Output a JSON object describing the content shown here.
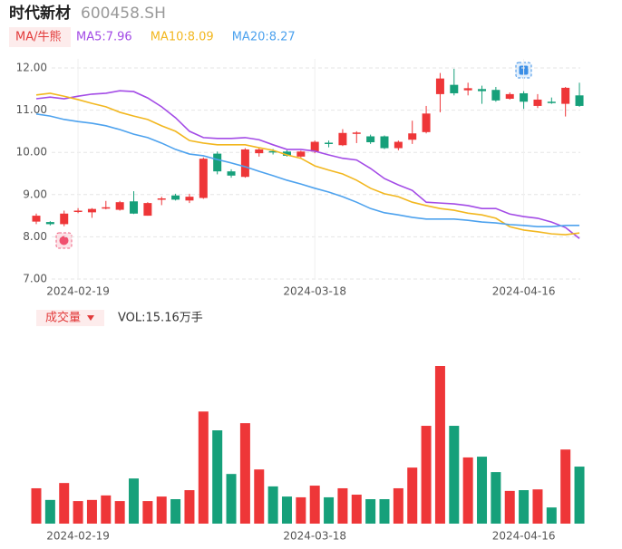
{
  "chart_data": {
    "type": "candlestick",
    "title": "时代新材",
    "subtitle": "600458.SH",
    "indicator": "MA/牛熊",
    "up_color": "#ee3638",
    "down_color": "#16a07a",
    "categories": [
      null,
      null,
      null,
      "2024-02-19",
      null,
      null,
      null,
      null,
      null,
      null,
      null,
      null,
      null,
      null,
      null,
      null,
      null,
      null,
      null,
      null,
      "2024-03-18",
      null,
      null,
      null,
      null,
      null,
      null,
      null,
      null,
      null,
      null,
      null,
      null,
      null,
      null,
      "2024-04-16",
      null,
      null,
      null,
      null
    ],
    "open": [
      8.36,
      8.35,
      8.3,
      8.6,
      8.58,
      8.68,
      8.64,
      8.84,
      8.5,
      8.88,
      8.98,
      8.86,
      8.92,
      9.97,
      9.55,
      9.42,
      9.98,
      10.03,
      10.02,
      9.9,
      10.02,
      10.23,
      10.17,
      10.44,
      10.38,
      10.38,
      10.1,
      10.3,
      10.48,
      11.38,
      11.6,
      11.47,
      11.5,
      11.48,
      11.27,
      11.4,
      11.1,
      11.2,
      11.15,
      11.35
    ],
    "close": [
      8.5,
      8.3,
      8.55,
      8.62,
      8.66,
      8.7,
      8.82,
      8.55,
      8.8,
      8.91,
      8.88,
      8.95,
      9.85,
      9.55,
      9.45,
      10.07,
      10.07,
      10.01,
      9.92,
      10.02,
      10.25,
      10.2,
      10.46,
      10.47,
      10.24,
      10.1,
      10.25,
      10.45,
      10.92,
      11.75,
      11.4,
      11.52,
      11.45,
      11.23,
      11.38,
      11.2,
      11.25,
      11.17,
      11.53,
      11.1
    ],
    "high": [
      8.55,
      8.37,
      8.62,
      8.68,
      8.68,
      8.85,
      8.85,
      9.08,
      8.82,
      8.95,
      9.02,
      9.02,
      9.88,
      10.02,
      9.6,
      10.1,
      10.1,
      10.08,
      10.05,
      10.04,
      10.28,
      10.28,
      10.55,
      10.5,
      10.42,
      10.4,
      10.28,
      10.75,
      11.1,
      11.88,
      11.98,
      11.65,
      11.58,
      11.55,
      11.42,
      11.45,
      11.38,
      11.3,
      11.55,
      11.65
    ],
    "low": [
      8.3,
      8.27,
      8.25,
      8.56,
      8.45,
      8.65,
      8.62,
      8.54,
      8.5,
      8.75,
      8.86,
      8.8,
      8.9,
      9.48,
      9.4,
      9.4,
      9.9,
      9.95,
      9.9,
      9.88,
      9.98,
      10.12,
      10.15,
      10.22,
      10.2,
      10.08,
      10.05,
      10.2,
      10.45,
      10.95,
      11.35,
      11.35,
      11.15,
      11.2,
      11.25,
      11.03,
      11.05,
      11.15,
      10.85,
      11.08
    ],
    "series": [
      {
        "label": "MA5:7.96",
        "color": "#a34be6",
        "values": [
          11.27,
          11.31,
          11.27,
          11.33,
          11.38,
          11.4,
          11.46,
          11.44,
          11.29,
          11.08,
          10.82,
          10.5,
          10.35,
          10.33,
          10.33,
          10.35,
          10.3,
          10.18,
          10.07,
          10.07,
          10.03,
          9.94,
          9.86,
          9.82,
          9.62,
          9.38,
          9.23,
          9.1,
          8.82,
          8.8,
          8.78,
          8.74,
          8.67,
          8.67,
          8.54,
          8.48,
          8.44,
          8.35,
          8.22,
          7.96
        ]
      },
      {
        "label": "MA10:8.09",
        "color": "#f2b71f",
        "values": [
          11.36,
          11.4,
          11.33,
          11.25,
          11.16,
          11.08,
          10.95,
          10.86,
          10.78,
          10.63,
          10.5,
          10.28,
          10.22,
          10.18,
          10.18,
          10.18,
          10.11,
          10.05,
          9.94,
          9.86,
          9.68,
          9.58,
          9.49,
          9.34,
          9.15,
          9.02,
          8.95,
          8.82,
          8.74,
          8.67,
          8.63,
          8.56,
          8.52,
          8.44,
          8.24,
          8.16,
          8.12,
          8.07,
          8.05,
          8.09
        ]
      },
      {
        "label": "MA20:8.27",
        "color": "#4da2ee",
        "values": [
          10.91,
          10.86,
          10.78,
          10.73,
          10.69,
          10.63,
          10.54,
          10.43,
          10.35,
          10.22,
          10.07,
          9.96,
          9.92,
          9.83,
          9.75,
          9.66,
          9.55,
          9.45,
          9.34,
          9.25,
          9.15,
          9.06,
          8.95,
          8.82,
          8.67,
          8.57,
          8.52,
          8.46,
          8.42,
          8.42,
          8.42,
          8.39,
          8.35,
          8.33,
          8.29,
          8.27,
          8.24,
          8.24,
          8.27,
          8.27
        ]
      }
    ],
    "ylim": [
      7,
      12
    ],
    "yticks": [
      {
        "value": 12,
        "label": "12.00"
      },
      {
        "value": 11,
        "label": "11.00"
      },
      {
        "value": 10,
        "label": "10.00"
      },
      {
        "value": 9,
        "label": "9.00"
      },
      {
        "value": 8,
        "label": "8.00"
      },
      {
        "value": 7,
        "label": "7.00"
      }
    ],
    "grid": true,
    "volume_indicator": "成交量",
    "volume_label": "VOL:15.16万手",
    "volume": [
      9.4,
      6.3,
      10.8,
      6.0,
      6.3,
      7.5,
      6.0,
      12.0,
      6.0,
      7.2,
      6.5,
      8.9,
      29.8,
      24.8,
      13.2,
      26.7,
      14.4,
      9.9,
      7.2,
      7.0,
      10.1,
      7.0,
      9.4,
      7.7,
      6.5,
      6.5,
      9.4,
      14.9,
      26.0,
      41.9,
      26.0,
      17.6,
      17.8,
      13.7,
      8.7,
      8.9,
      9.1,
      4.3,
      19.7,
      15.16
    ]
  }
}
